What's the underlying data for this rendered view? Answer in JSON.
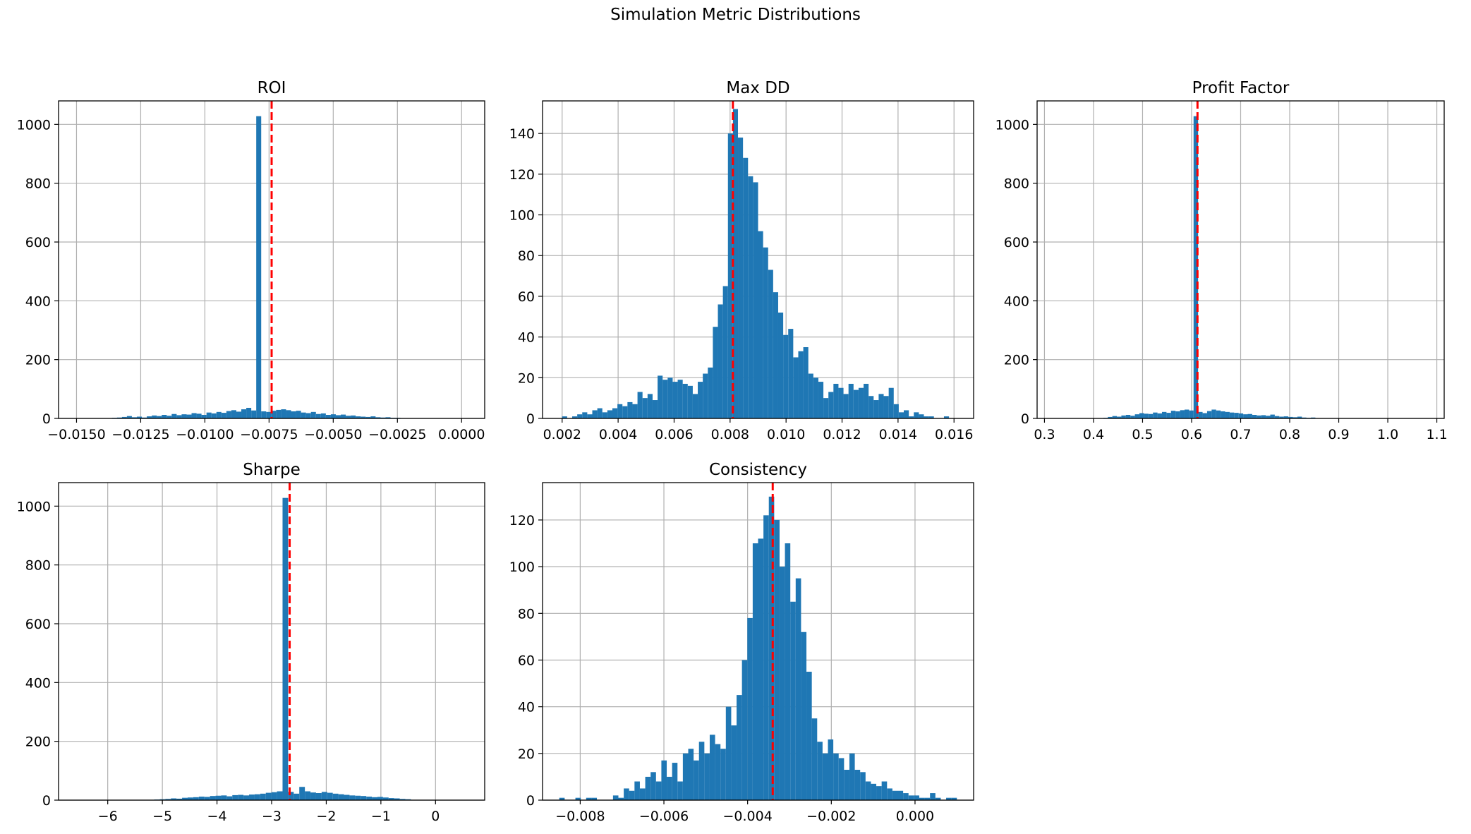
{
  "figure": {
    "title": "Simulation Metric Distributions"
  },
  "colors": {
    "bar": "#1f77b4",
    "mean_line": "#ff0000",
    "grid": "#b0b0b0",
    "axes": "#000000"
  },
  "chart_data": [
    {
      "type": "bar",
      "title": "ROI",
      "xlabel": "",
      "ylabel": "",
      "grid": true,
      "xlim": [
        -0.0157,
        0.0009
      ],
      "ylim": [
        0,
        1080
      ],
      "xticks": [
        -0.015,
        -0.0125,
        -0.01,
        -0.0075,
        -0.005,
        -0.0025,
        0.0
      ],
      "xtick_labels": [
        "−0.0150",
        "−0.0125",
        "−0.0100",
        "−0.0075",
        "−0.0050",
        "−0.0025",
        "0.0000"
      ],
      "yticks": [
        0,
        200,
        400,
        600,
        800,
        1000
      ],
      "ytick_labels": [
        "0",
        "200",
        "400",
        "600",
        "800",
        "1000"
      ],
      "reference_line_x": -0.0074,
      "bin_range": [
        -0.0142,
        -0.0018
      ],
      "values": [
        1,
        0,
        1,
        2,
        3,
        5,
        8,
        4,
        6,
        3,
        7,
        10,
        8,
        12,
        9,
        15,
        11,
        14,
        13,
        18,
        16,
        12,
        20,
        17,
        22,
        19,
        25,
        28,
        23,
        31,
        36,
        27,
        1028,
        24,
        22,
        26,
        29,
        31,
        28,
        24,
        26,
        20,
        18,
        22,
        15,
        17,
        12,
        14,
        11,
        13,
        9,
        10,
        7,
        6,
        5,
        7,
        4,
        3,
        4,
        2,
        2,
        1,
        1,
        1
      ]
    },
    {
      "type": "bar",
      "title": "Max DD",
      "xlabel": "",
      "ylabel": "",
      "grid": true,
      "xlim": [
        0.0013,
        0.0167
      ],
      "ylim": [
        0,
        156
      ],
      "xticks": [
        0.002,
        0.004,
        0.006,
        0.008,
        0.01,
        0.012,
        0.014,
        0.016
      ],
      "xtick_labels": [
        "0.002",
        "0.004",
        "0.006",
        "0.008",
        "0.010",
        "0.012",
        "0.014",
        "0.016"
      ],
      "yticks": [
        0,
        20,
        40,
        60,
        80,
        100,
        120,
        140
      ],
      "ytick_labels": [
        "0",
        "20",
        "40",
        "60",
        "80",
        "100",
        "120",
        "140"
      ],
      "reference_line_x": 0.0081,
      "bin_range": [
        0.002,
        0.016
      ],
      "values": [
        1,
        0,
        1,
        2,
        3,
        2,
        4,
        5,
        3,
        4,
        5,
        7,
        6,
        8,
        7,
        13,
        10,
        12,
        9,
        21,
        19,
        20,
        18,
        19,
        17,
        16,
        12,
        18,
        22,
        25,
        45,
        56,
        65,
        140,
        152,
        138,
        128,
        119,
        116,
        92,
        84,
        73,
        62,
        52,
        41,
        44,
        30,
        33,
        35,
        22,
        20,
        18,
        10,
        13,
        17,
        15,
        12,
        17,
        14,
        15,
        17,
        11,
        9,
        12,
        11,
        15,
        7,
        3,
        4,
        1,
        3,
        2,
        1,
        1,
        0,
        0,
        1,
        0
      ]
    },
    {
      "type": "bar",
      "title": "Profit Factor",
      "xlabel": "",
      "ylabel": "",
      "grid": true,
      "xlim": [
        0.285,
        1.115
      ],
      "ylim": [
        0,
        1080
      ],
      "xticks": [
        0.3,
        0.4,
        0.5,
        0.6,
        0.7,
        0.8,
        0.9,
        1.0,
        1.1
      ],
      "xtick_labels": [
        "0.3",
        "0.4",
        "0.5",
        "0.6",
        "0.7",
        "0.8",
        "0.9",
        "1.0",
        "1.1"
      ],
      "yticks": [
        0,
        200,
        400,
        600,
        800,
        1000
      ],
      "ytick_labels": [
        "0",
        "200",
        "400",
        "600",
        "800",
        "1000"
      ],
      "reference_line_x": 0.612,
      "bin_range": [
        0.42,
        0.88
      ],
      "values": [
        2,
        5,
        8,
        6,
        10,
        12,
        9,
        14,
        18,
        16,
        15,
        20,
        17,
        22,
        19,
        26,
        24,
        28,
        30,
        27,
        1028,
        22,
        18,
        25,
        30,
        27,
        24,
        22,
        20,
        19,
        17,
        14,
        15,
        12,
        10,
        11,
        9,
        13,
        8,
        6,
        7,
        5,
        4,
        6,
        3,
        2,
        3,
        1,
        1,
        1
      ]
    },
    {
      "type": "bar",
      "title": "Sharpe",
      "xlabel": "",
      "ylabel": "",
      "grid": true,
      "xlim": [
        -6.9,
        0.9
      ],
      "ylim": [
        0,
        1080
      ],
      "xticks": [
        -6,
        -5,
        -4,
        -3,
        -2,
        -1,
        0
      ],
      "xtick_labels": [
        "−6",
        "−5",
        "−4",
        "−3",
        "−2",
        "−1",
        "0"
      ],
      "yticks": [
        0,
        200,
        400,
        600,
        800,
        1000
      ],
      "ytick_labels": [
        "0",
        "200",
        "400",
        "600",
        "800",
        "1000"
      ],
      "reference_line_x": -2.67,
      "bin_range": [
        -5.15,
        -0.45
      ],
      "values": [
        2,
        3,
        4,
        6,
        5,
        8,
        9,
        10,
        12,
        11,
        14,
        15,
        16,
        13,
        17,
        18,
        16,
        19,
        20,
        22,
        25,
        27,
        30,
        1028,
        28,
        22,
        45,
        30,
        26,
        24,
        28,
        25,
        22,
        20,
        18,
        16,
        15,
        14,
        12,
        10,
        11,
        9,
        7,
        6,
        4,
        3
      ]
    },
    {
      "type": "bar",
      "title": "Consistency",
      "xlabel": "",
      "ylabel": "",
      "grid": true,
      "xlim": [
        -0.0089,
        0.0014
      ],
      "ylim": [
        0,
        136
      ],
      "xticks": [
        -0.008,
        -0.006,
        -0.004,
        -0.002,
        0.0
      ],
      "xtick_labels": [
        "−0.008",
        "−0.006",
        "−0.004",
        "−0.002",
        "0.000"
      ],
      "yticks": [
        0,
        20,
        40,
        60,
        80,
        100,
        120
      ],
      "ytick_labels": [
        "0",
        "20",
        "40",
        "60",
        "80",
        "100",
        "120"
      ],
      "reference_line_x": -0.0034,
      "bin_range": [
        -0.0085,
        0.001
      ],
      "values": [
        1,
        0,
        0,
        1,
        0,
        1,
        1,
        0,
        0,
        0,
        2,
        1,
        5,
        4,
        8,
        5,
        10,
        12,
        8,
        17,
        10,
        16,
        8,
        20,
        22,
        17,
        25,
        20,
        28,
        24,
        22,
        40,
        32,
        45,
        60,
        78,
        110,
        112,
        122,
        130,
        120,
        100,
        110,
        85,
        95,
        72,
        55,
        35,
        25,
        20,
        26,
        20,
        18,
        13,
        20,
        13,
        12,
        8,
        7,
        6,
        8,
        5,
        4,
        4,
        3,
        2,
        2,
        1,
        1,
        3,
        1,
        0,
        1,
        1
      ]
    }
  ]
}
